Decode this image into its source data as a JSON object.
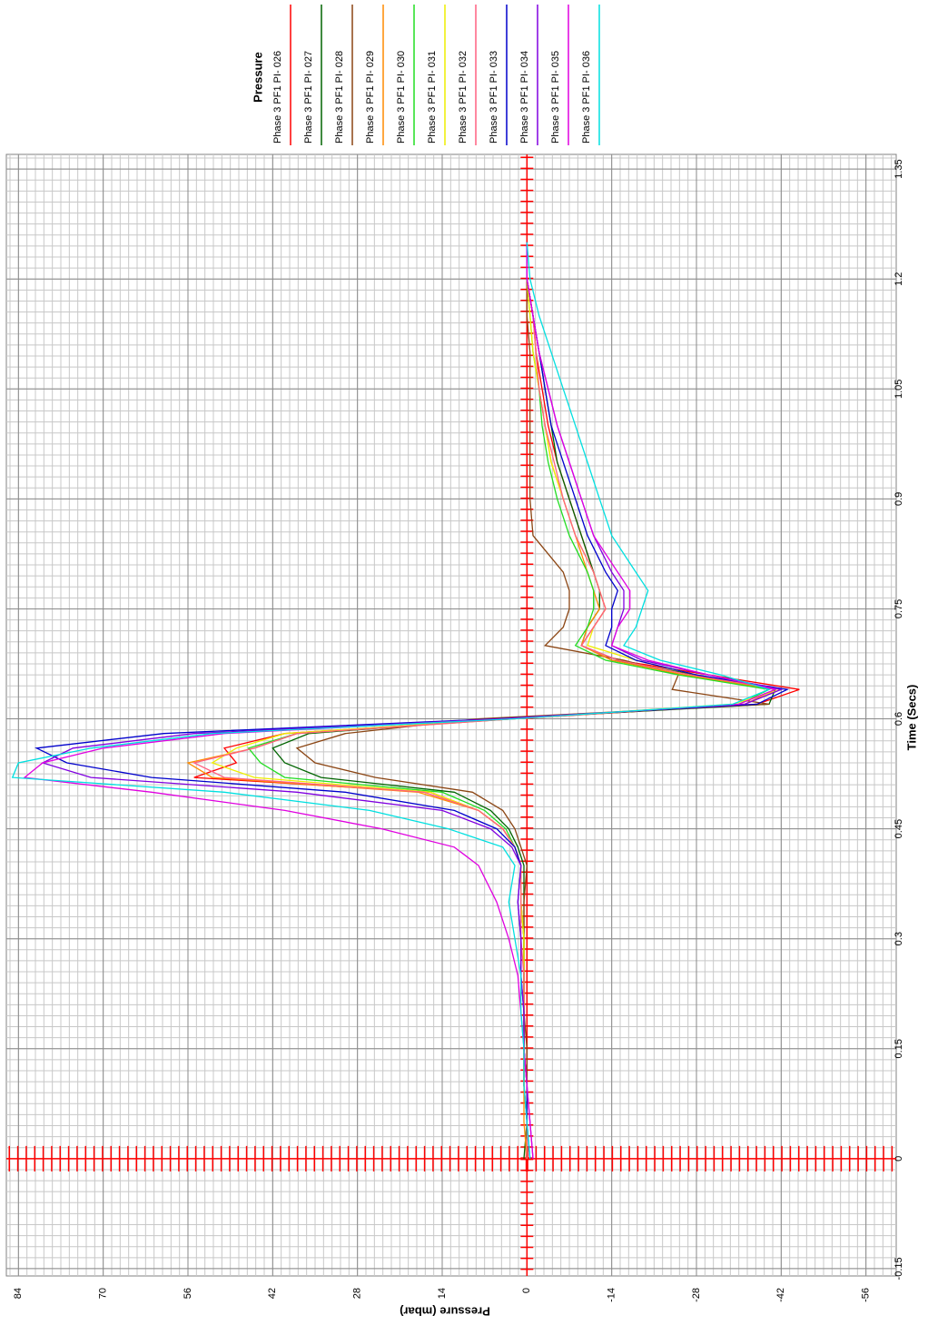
{
  "chart_data": {
    "type": "line",
    "legend_title": "Pressure",
    "x_label": "Time (Secs)",
    "y_label": "Pressure (mbar)",
    "grid": true,
    "xlim": [
      -0.16,
      1.37
    ],
    "ylim": [
      -61,
      86
    ],
    "xticks": [
      -0.15,
      0,
      0.15,
      0.3,
      0.45,
      0.6,
      0.75,
      0.9,
      1.05,
      1.2,
      1.35
    ],
    "yticks": [
      84,
      70,
      56,
      42,
      28,
      14,
      0,
      -14,
      -28,
      -42,
      -56
    ],
    "x": [
      0,
      0.05,
      0.1,
      0.15,
      0.2,
      0.25,
      0.3,
      0.35,
      0.4,
      0.425,
      0.45,
      0.475,
      0.5,
      0.52,
      0.54,
      0.56,
      0.58,
      0.6,
      0.62,
      0.64,
      0.66,
      0.68,
      0.7,
      0.725,
      0.75,
      0.775,
      0.8,
      0.85,
      0.9,
      0.95,
      1.0,
      1.05,
      1.1,
      1.15,
      1.2,
      1.25
    ],
    "series": [
      {
        "name": "Phase 3 PF1 PI-   026",
        "color": "#ff0000",
        "values": [
          0,
          0,
          0.5,
          0.5,
          0.5,
          0.5,
          0.5,
          1,
          1,
          2,
          4,
          8,
          16,
          55,
          48,
          50,
          40,
          2,
          -38,
          -45,
          -30,
          -15,
          -9,
          -11,
          -13,
          -12,
          -11,
          -9,
          -7,
          -5,
          -3.5,
          -2.5,
          -1.5,
          -1,
          0,
          0
        ]
      },
      {
        "name": "Phase 3 PF1 PI-   027",
        "color": "#006400",
        "values": [
          0.5,
          0,
          0,
          0.5,
          0.5,
          0.5,
          0.5,
          0.5,
          0.5,
          1.5,
          3,
          6,
          12,
          34,
          40,
          42,
          36,
          4,
          -40,
          -41,
          -28,
          -14,
          -9,
          -10,
          -12,
          -12,
          -11,
          -9,
          -7,
          -5,
          -4,
          -3,
          -2,
          -1,
          0,
          0
        ]
      },
      {
        "name": "Phase 3 PF1 PI-   028",
        "color": "#8b4513",
        "values": [
          0,
          0,
          0,
          0,
          0.5,
          0.5,
          0.5,
          0.5,
          0,
          1,
          2,
          4,
          9,
          25,
          35,
          38,
          30,
          8,
          -40,
          -24,
          -25,
          -16,
          -3,
          -6,
          -7,
          -7,
          -6,
          -1,
          -0.5,
          -0.5,
          -0.5,
          -0.5,
          -0.5,
          0,
          0,
          0
        ]
      },
      {
        "name": "Phase 3 PF1 PI-   029",
        "color": "#ff8c00",
        "values": [
          0,
          0.5,
          0.5,
          0.5,
          0.5,
          0.5,
          0.5,
          1,
          1,
          2,
          4,
          8,
          18,
          52,
          56,
          45,
          38,
          2,
          -36,
          -41,
          -26,
          -14,
          -9,
          -10,
          -12,
          -11,
          -10,
          -8,
          -6,
          -4,
          -3,
          -2,
          -1.5,
          -1,
          0,
          0
        ]
      },
      {
        "name": "Phase 3 PF1 PI-   030",
        "color": "#22dd22",
        "values": [
          0,
          0,
          0.5,
          0.5,
          0.5,
          0.5,
          0.5,
          1,
          1,
          2,
          3.5,
          7,
          14,
          40,
          44,
          46,
          38,
          3,
          -35,
          -40,
          -25,
          -13,
          -8,
          -10,
          -11,
          -11,
          -10,
          -7,
          -5,
          -3.5,
          -2.5,
          -2,
          -1,
          -0.5,
          0,
          0
        ]
      },
      {
        "name": "Phase 3 PF1 PI-   031",
        "color": "#eeee00",
        "values": [
          0,
          0,
          0,
          0.5,
          0.5,
          0.5,
          0.5,
          1,
          1,
          2,
          4,
          8,
          16,
          45,
          52,
          48,
          40,
          3,
          -34,
          -42,
          -28,
          -18,
          -10,
          -11,
          -13,
          -12,
          -11,
          -8,
          -6,
          -4,
          -3,
          -2,
          -1,
          -0.5,
          0,
          0
        ]
      },
      {
        "name": "Phase 3 PF1 PI-   032",
        "color": "#ff6080",
        "values": [
          0,
          0,
          0.5,
          0.5,
          0.5,
          0.5,
          1,
          1,
          1,
          2,
          4,
          8,
          17,
          50,
          55,
          45,
          38,
          2,
          -36,
          -42,
          -27,
          -15,
          -9,
          -11,
          -13,
          -12,
          -11,
          -8,
          -6,
          -4.5,
          -3,
          -2,
          -1.5,
          -1,
          0,
          0
        ]
      },
      {
        "name": "Phase 3 PF1 PI-   033",
        "color": "#0000cc",
        "values": [
          -0.5,
          0,
          0,
          0.5,
          0.5,
          1,
          1,
          1.5,
          1,
          2,
          5,
          12,
          30,
          62,
          76,
          81,
          60,
          5,
          -38,
          -43,
          -28,
          -18,
          -13,
          -14,
          -14,
          -15,
          -13,
          -10,
          -8,
          -6,
          -4,
          -3,
          -2,
          -1,
          0,
          0
        ]
      },
      {
        "name": "Phase 3 PF1 PI-   034",
        "color": "#8000e0",
        "values": [
          -1,
          -0.5,
          0,
          0.5,
          0.5,
          1,
          1,
          1.5,
          1,
          2.5,
          6,
          14,
          38,
          72,
          80,
          75,
          55,
          4,
          -36,
          -42,
          -30,
          -19,
          -14,
          -15,
          -16,
          -16,
          -14,
          -11,
          -9,
          -7,
          -5,
          -3.5,
          -2,
          -1,
          0,
          0
        ]
      },
      {
        "name": "Phase 3 PF1 PI-   035",
        "color": "#e000e0",
        "values": [
          -1,
          -0.5,
          0,
          0.5,
          1,
          1.5,
          3,
          5,
          8,
          12,
          24,
          40,
          62,
          83,
          80,
          70,
          50,
          3,
          -35,
          -41,
          -30,
          -20,
          -14,
          -15,
          -17,
          -17,
          -15,
          -11,
          -9,
          -7,
          -5,
          -3.5,
          -2,
          -1,
          0,
          0
        ]
      },
      {
        "name": "Phase 3 PF1 PI-   036",
        "color": "#00e0e0",
        "values": [
          -0.5,
          0,
          0.5,
          0.5,
          1,
          1,
          2,
          3,
          2,
          4,
          13,
          26,
          50,
          85,
          84,
          72,
          52,
          2,
          -34,
          -40,
          -32,
          -22,
          -16,
          -18,
          -19,
          -20,
          -18,
          -14,
          -12,
          -10,
          -8,
          -6,
          -4,
          -2,
          -0.5,
          0
        ]
      }
    ]
  }
}
